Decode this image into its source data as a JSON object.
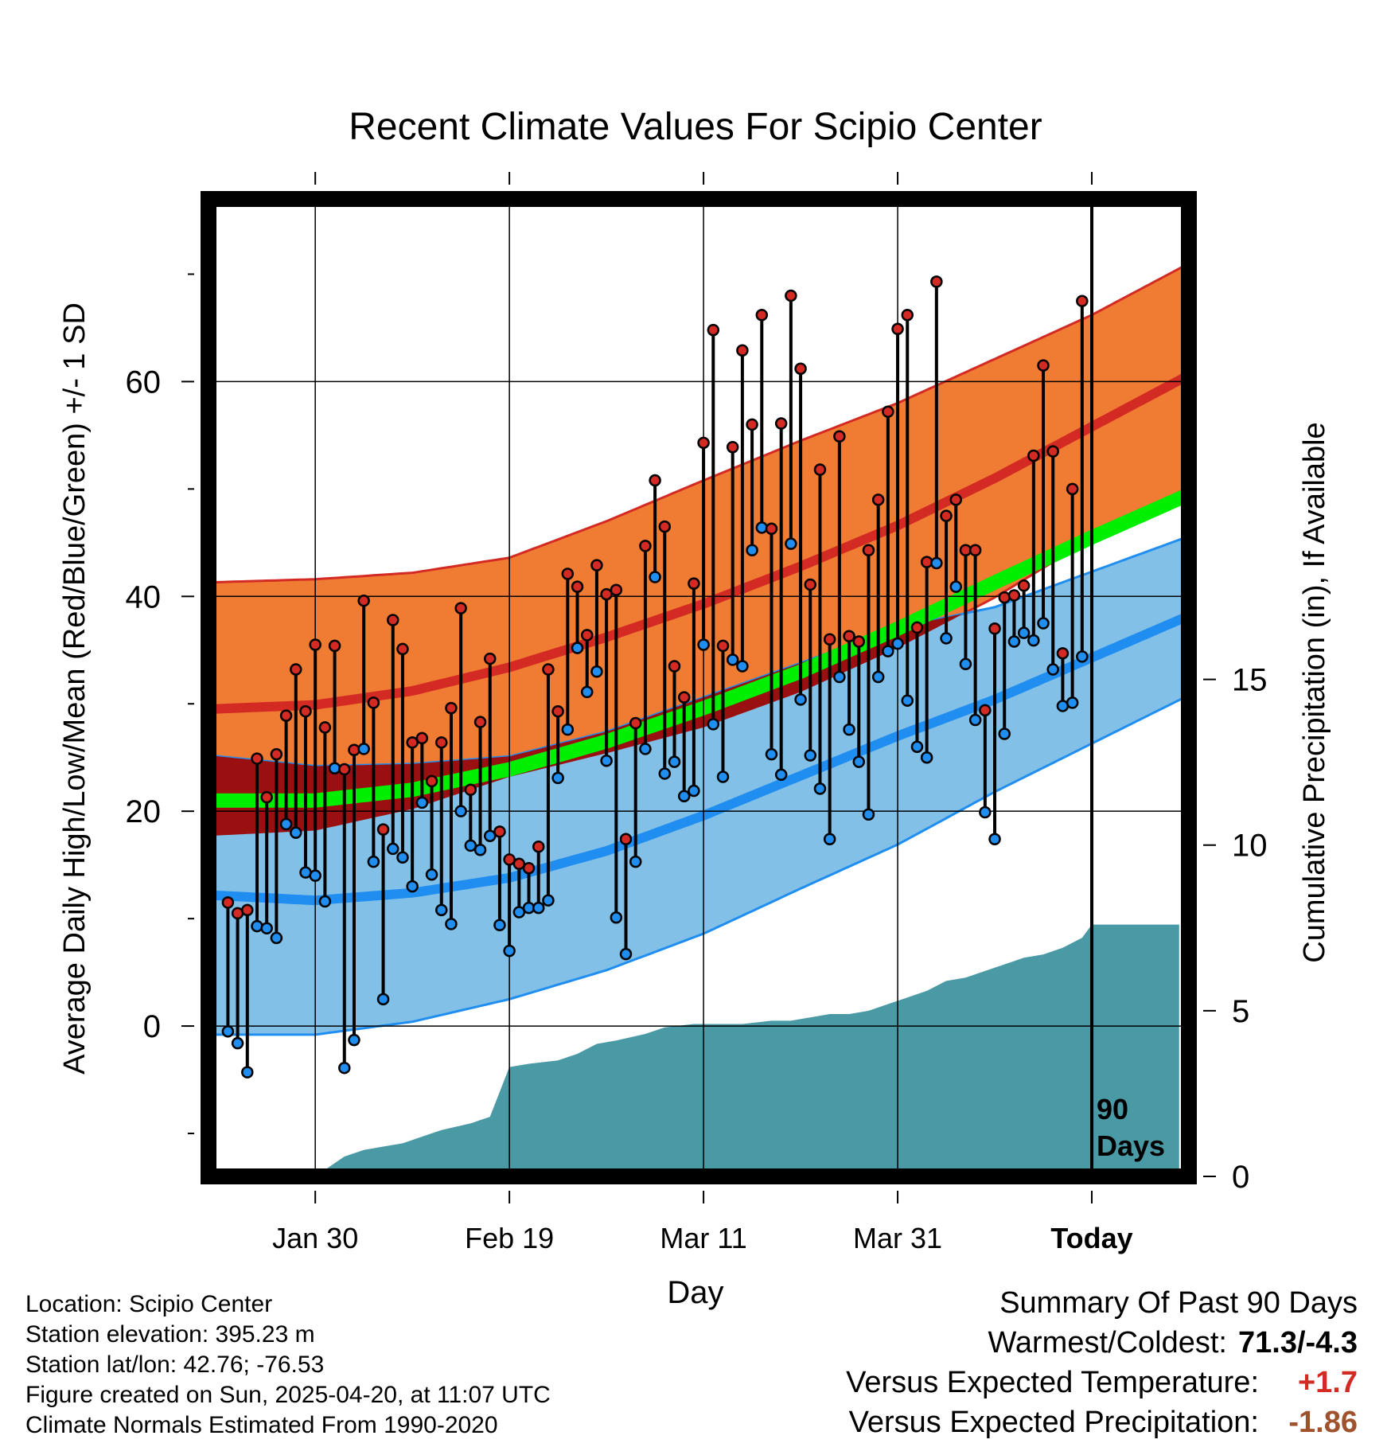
{
  "chart_data": {
    "type": "line",
    "title": "Recent Climate Values For Scipio Center",
    "xlabel": "Day",
    "ylabel": "Average Daily High/Low/Mean (Red/Blue/Green) +/- 1 SD",
    "y2label": "Cumulative Precipitation (in), If Available",
    "xticks": [
      "Jan 30",
      "Feb 19",
      "Mar 11",
      "Mar 31",
      "Today"
    ],
    "xtick_days": [
      -80,
      -60,
      -40,
      -20,
      0
    ],
    "xlim_days": [
      -91,
      10
    ],
    "ylim": [
      -14,
      77
    ],
    "yticks": [
      0,
      20,
      40,
      60
    ],
    "y2lim": [
      0,
      29.5
    ],
    "y2ticks": [
      0,
      5,
      10,
      15
    ],
    "grid": true,
    "today_marker": "90\nDays",
    "normals": {
      "days": [
        -91,
        -80,
        -70,
        -60,
        -50,
        -40,
        -30,
        -20,
        -10,
        0,
        10
      ],
      "high_mean": [
        29.5,
        29.9,
        31.2,
        33.4,
        36.2,
        39.3,
        42.8,
        46.6,
        51.0,
        55.8,
        60.6
      ],
      "high_sd": [
        11.8,
        11.7,
        11.0,
        10.2,
        10.8,
        11.5,
        11.7,
        11.4,
        11.1,
        10.4,
        10.4
      ],
      "low_mean": [
        12.2,
        11.7,
        12.4,
        13.8,
        16.3,
        19.6,
        23.3,
        27.0,
        30.4,
        34.3,
        38.2
      ],
      "low_sd": [
        13.0,
        12.5,
        12.0,
        11.3,
        11.1,
        11.0,
        10.5,
        10.1,
        8.6,
        8.0,
        7.4
      ],
      "avg_mean": [
        21.0,
        21.0,
        22.0,
        23.9,
        26.5,
        29.6,
        33.0,
        37.0,
        41.3,
        45.5,
        49.5
      ]
    },
    "series": [
      {
        "name": "High",
        "days": [
          -89,
          -88,
          -87,
          -86,
          -85,
          -84,
          -83,
          -82,
          -81,
          -80,
          -79,
          -78,
          -77,
          -76,
          -75,
          -74,
          -73,
          -72,
          -71,
          -70,
          -69,
          -68,
          -67,
          -66,
          -65,
          -64,
          -63,
          -62,
          -61,
          -60,
          -59,
          -58,
          -57,
          -56,
          -55,
          -54,
          -53,
          -52,
          -51,
          -50,
          -49,
          -48,
          -47,
          -46,
          -45,
          -44,
          -43,
          -42,
          -41,
          -40,
          -39,
          -38,
          -37,
          -36,
          -35,
          -34,
          -33,
          -32,
          -31,
          -30,
          -29,
          -28,
          -27,
          -26,
          -25,
          -24,
          -23,
          -22,
          -21,
          -20,
          -19,
          -18,
          -17,
          -16,
          -15,
          -14,
          -13,
          -12,
          -11,
          -10,
          -9,
          -8,
          -7,
          -6,
          -5,
          -4,
          -3,
          -2,
          -1
        ],
        "values": [
          11.5,
          10.5,
          10.8,
          24.9,
          21.3,
          25.3,
          28.9,
          33.2,
          29.3,
          35.5,
          27.8,
          35.4,
          23.9,
          25.7,
          39.6,
          30.1,
          18.3,
          37.8,
          35.1,
          26.4,
          26.8,
          22.8,
          26.4,
          29.6,
          38.9,
          22.0,
          28.3,
          34.2,
          18.1,
          15.5,
          15.1,
          14.7,
          16.7,
          33.2,
          29.3,
          42.1,
          40.9,
          36.4,
          42.9,
          40.2,
          40.6,
          17.4,
          28.2,
          44.7,
          50.8,
          46.5,
          33.5,
          30.6,
          41.2,
          54.3,
          64.8,
          35.4,
          53.9,
          62.9,
          56.0,
          66.2,
          46.3,
          56.1,
          68.0,
          61.2,
          41.1,
          51.8,
          36.0,
          54.9,
          36.3,
          35.8,
          44.3,
          49.0,
          57.2,
          64.9,
          66.2,
          37.1,
          43.2,
          69.3,
          47.5,
          49.0,
          44.3,
          44.3,
          29.4,
          37.0,
          39.9,
          40.1,
          41.0,
          53.1,
          61.5,
          53.5,
          34.7,
          50.0,
          67.5
        ]
      },
      {
        "name": "Low",
        "days": [
          -89,
          -88,
          -87,
          -86,
          -85,
          -84,
          -83,
          -82,
          -81,
          -80,
          -79,
          -78,
          -77,
          -76,
          -75,
          -74,
          -73,
          -72,
          -71,
          -70,
          -69,
          -68,
          -67,
          -66,
          -65,
          -64,
          -63,
          -62,
          -61,
          -60,
          -59,
          -58,
          -57,
          -56,
          -55,
          -54,
          -53,
          -52,
          -51,
          -50,
          -49,
          -48,
          -47,
          -46,
          -45,
          -44,
          -43,
          -42,
          -41,
          -40,
          -39,
          -38,
          -37,
          -36,
          -35,
          -34,
          -33,
          -32,
          -31,
          -30,
          -29,
          -28,
          -27,
          -26,
          -25,
          -24,
          -23,
          -22,
          -21,
          -20,
          -19,
          -18,
          -17,
          -16,
          -15,
          -14,
          -13,
          -12,
          -11,
          -10,
          -9,
          -8,
          -7,
          -6,
          -5,
          -4,
          -3,
          -2,
          -1
        ],
        "values": [
          -0.5,
          -1.6,
          -4.3,
          9.3,
          9.1,
          8.2,
          18.8,
          18.0,
          14.3,
          14.0,
          11.6,
          24.0,
          -3.9,
          -1.3,
          25.8,
          15.3,
          2.5,
          16.5,
          15.7,
          13.0,
          20.8,
          14.1,
          10.8,
          9.5,
          20.0,
          16.8,
          16.4,
          17.7,
          9.4,
          7.0,
          10.6,
          11.0,
          11.0,
          11.7,
          23.1,
          27.6,
          35.2,
          31.1,
          33.0,
          24.7,
          10.1,
          6.7,
          15.3,
          25.8,
          41.8,
          23.5,
          24.6,
          21.4,
          21.9,
          35.5,
          28.1,
          23.2,
          34.1,
          33.5,
          44.3,
          46.4,
          25.3,
          23.4,
          44.9,
          30.4,
          25.2,
          22.1,
          17.4,
          32.5,
          27.6,
          24.6,
          19.7,
          32.5,
          34.9,
          35.6,
          30.3,
          26.0,
          25.0,
          43.1,
          36.1,
          40.9,
          33.7,
          28.5,
          19.9,
          17.4,
          27.2,
          35.8,
          36.6,
          35.9,
          37.5,
          33.2,
          29.8,
          30.1,
          34.4
        ]
      }
    ],
    "precipitation": {
      "name": "Cumulative Precipitation",
      "days": [
        -80,
        -77,
        -75,
        -73,
        -71,
        -69,
        -67,
        -64,
        -62,
        -60,
        -58,
        -55,
        -53,
        -51,
        -49,
        -46,
        -44,
        -41,
        -39,
        -36,
        -33,
        -31,
        -29,
        -27,
        -25,
        -23,
        -21,
        -19,
        -17,
        -15,
        -13,
        -11,
        -9,
        -7,
        -5,
        -3,
        -1,
        0,
        9
      ],
      "values": [
        0.0,
        0.6,
        0.8,
        0.9,
        1.0,
        1.2,
        1.4,
        1.6,
        1.8,
        3.3,
        3.4,
        3.5,
        3.7,
        4.0,
        4.1,
        4.3,
        4.5,
        4.6,
        4.6,
        4.6,
        4.7,
        4.7,
        4.8,
        4.9,
        4.9,
        5.0,
        5.2,
        5.4,
        5.6,
        5.9,
        6.0,
        6.2,
        6.4,
        6.6,
        6.7,
        6.9,
        7.2,
        7.6,
        7.6
      ]
    }
  },
  "info": {
    "location": "Location: Scipio Center",
    "elevation": "Station elevation: 395.23 m",
    "latlon": "Station lat/lon: 42.76; -76.53",
    "created": "Figure created on Sun, 2025-04-20, at 11:07 UTC",
    "normals": "Climate Normals Estimated From 1990-2020"
  },
  "summary": {
    "title": "Summary Of Past 90 Days",
    "warmest_coldest_label": "Warmest/Coldest:",
    "warmest_coldest_value": "71.3/-4.3",
    "temp_label": "Versus Expected Temperature:",
    "temp_value": "+1.7",
    "temp_color": "#d42a24",
    "precip_label": "Versus Expected Precipitation:",
    "precip_value": "-1.86",
    "precip_color": "#a0522d"
  },
  "colors": {
    "high_band": "#f07c34",
    "high_line": "#d42a24",
    "low_band": "#82c0e8",
    "low_line": "#1f8ef0",
    "overlap": "#9a1010",
    "mean_line": "#00ee00",
    "precip": "#4a9aa6"
  }
}
